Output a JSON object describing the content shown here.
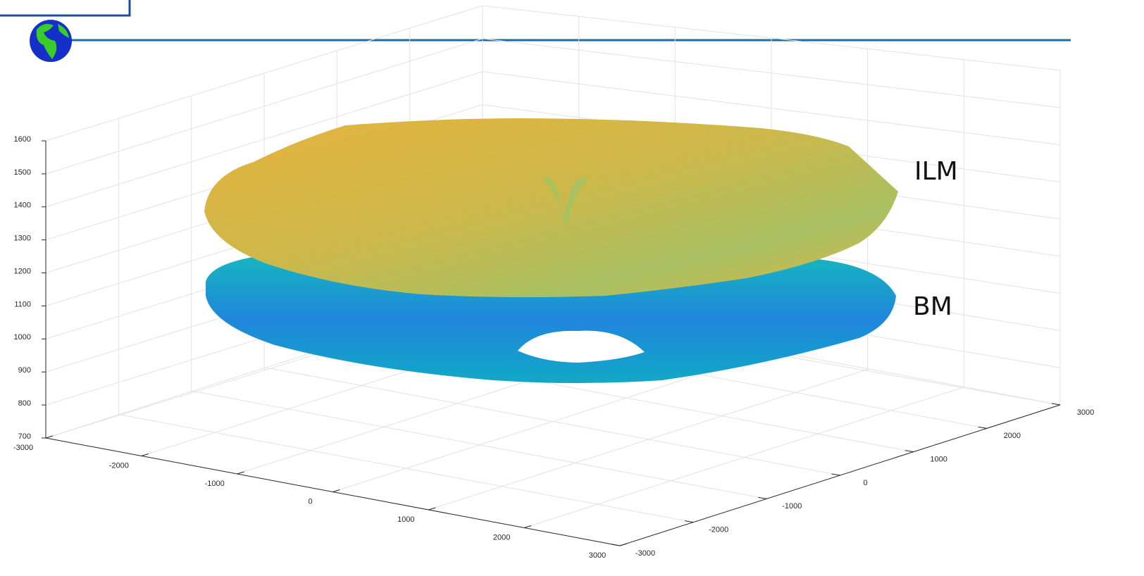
{
  "plot": {
    "z_ticks": [
      "1600",
      "1500",
      "1400",
      "1300",
      "1200",
      "1100",
      "1000",
      "900",
      "800",
      "700"
    ],
    "x_ticks": [
      "-3000",
      "-2000",
      "-1000",
      "0",
      "1000",
      "2000",
      "3000"
    ],
    "y_ticks": [
      "-3000",
      "-2000",
      "-1000",
      "0",
      "1000",
      "2000",
      "3000"
    ],
    "surface_labels": [
      "ILM",
      "BM"
    ]
  }
}
